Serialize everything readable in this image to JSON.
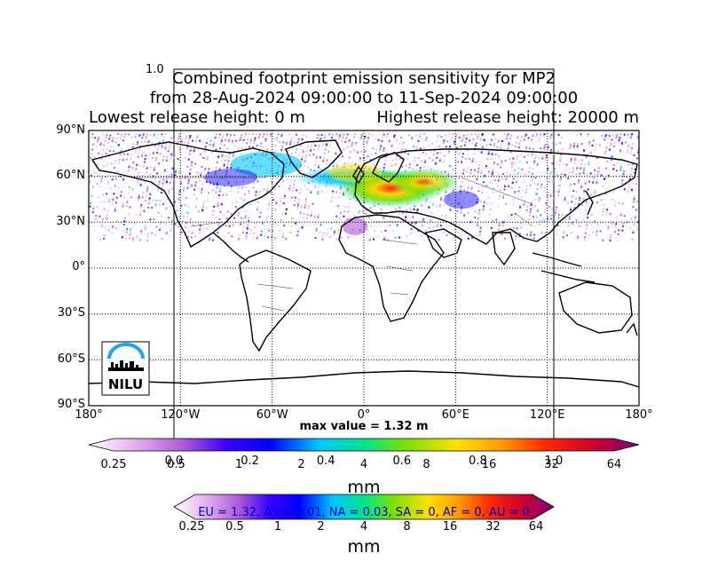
{
  "title": {
    "line1": "Combined footprint emission sensitivity for MP2",
    "line2": "from 28-Aug-2024 09:00:00 to 11-Sep-2024 09:00:00",
    "line3_left": "Lowest release height: 0 m",
    "line3_right": "Highest release height: 20000 m"
  },
  "ghost_axis": {
    "top_label": "1.0",
    "tick_labels": [
      "0.0",
      "0.2",
      "0.4",
      "0.6",
      "0.8",
      "1.0"
    ]
  },
  "map": {
    "lat_labels": [
      "90°N",
      "60°N",
      "30°N",
      "0°",
      "30°S",
      "60°S",
      "90°S"
    ],
    "lon_labels": [
      "180°",
      "120°W",
      "60°W",
      "0°",
      "60°E",
      "120°E",
      "180°"
    ],
    "grid": true,
    "max_value_text": "max value = 1.32 m",
    "logo": {
      "name": "NILU",
      "icon": "nilu-logo-icon"
    }
  },
  "colorbar_main": {
    "ticks": [
      "0.25",
      "0.5",
      "1",
      "2",
      "4",
      "8",
      "16",
      "32",
      "64"
    ],
    "unit": "mm"
  },
  "colorbar_second": {
    "ticks": [
      "0.25",
      "0.5",
      "1",
      "2",
      "4",
      "8",
      "16",
      "32",
      "64"
    ],
    "unit": "mm"
  },
  "region_summary": "EU = 1.32,  AS = 0.01,  NA = 0.03,  SA = 0,  AF = 0,  AU = 0",
  "colors": {
    "scale": [
      "#ffffff",
      "#e6b3ef",
      "#b05cd6",
      "#7a1fd6",
      "#0000ff",
      "#00c8ff",
      "#00e38c",
      "#7fe000",
      "#ffe000",
      "#ff9a00",
      "#ff2a00",
      "#cc0033",
      "#7a007a"
    ],
    "region_text": "#0000cc",
    "coast": "#000000"
  }
}
